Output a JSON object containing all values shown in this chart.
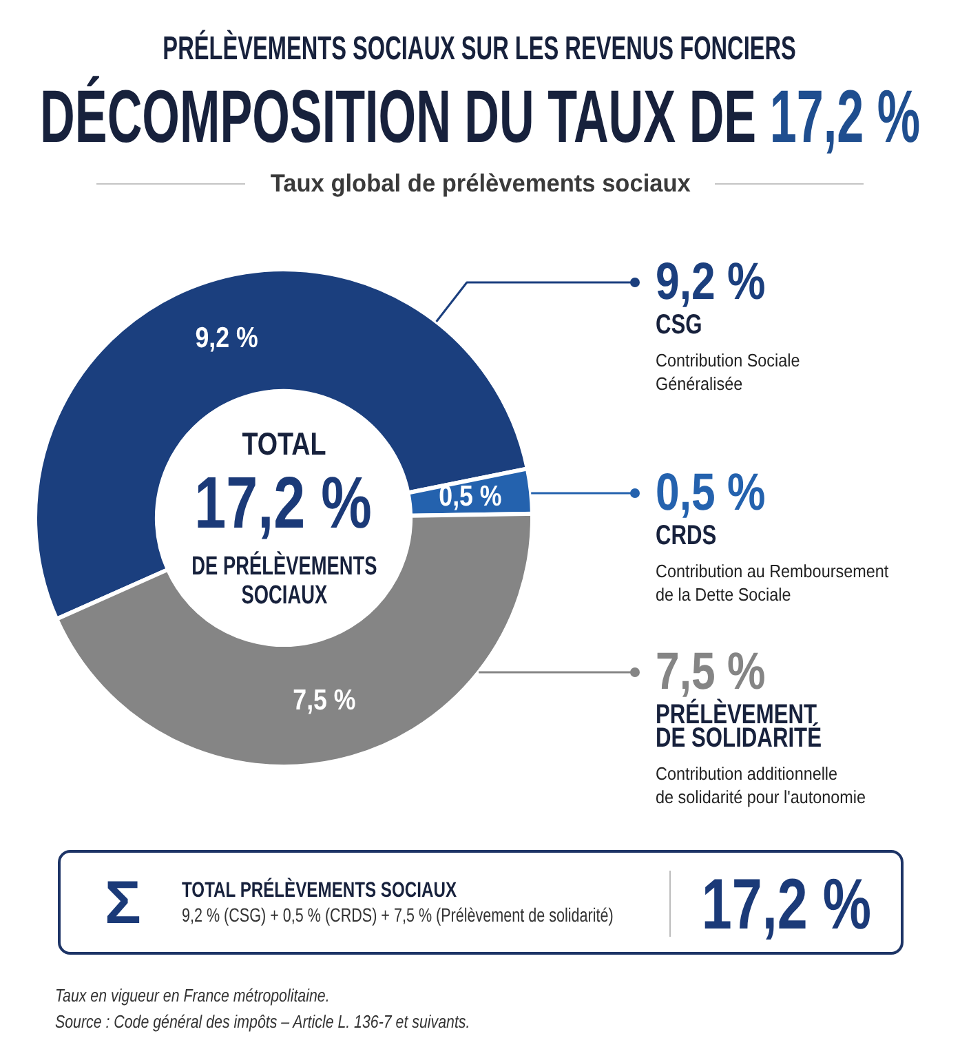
{
  "chart_data": {
    "type": "donut",
    "title": "DÉCOMPOSITION DU TAUX DE 17,2 %",
    "subtitle": "Taux global de prélèvements sociaux",
    "categories": [
      "CSG",
      "CRDS",
      "PRÉLÈVEMENT\nDE SOLIDARITÉ"
    ],
    "values": [
      9.2,
      0.5,
      7.5
    ],
    "colors": [
      "#1b3f7e",
      "#2462ae",
      "#858585"
    ],
    "value_labels": [
      "9,2 %",
      "0,5 %",
      "7,5 %"
    ],
    "legend": "right",
    "annotations": [
      "PRÉLÈVEMENTS SOCIAUX SUR LES REVENUS FONCIERS",
      "Contribution Sociale\nGénéralisée",
      "Contribution au Remboursement\nde la Dette Sociale",
      "Contribution additionnelle\nde solidarité pour l'autonomie",
      "TOTAL",
      "17,2 %",
      "DE PRÉLÈVEMENTS\nSOCIAUX",
      "Σ",
      "TOTAL PRÉLÈVEMENTS SOCIAUX",
      "9,2 % (CSG) + 0,5 % (CRDS) + 7,5 % (Prélèvement de solidarité)",
      "17,2 %",
      "Taux en vigueur en France métropolitaine.",
      "Source : Code général des impôts – Article L. 136-7 et suivants."
    ]
  }
}
